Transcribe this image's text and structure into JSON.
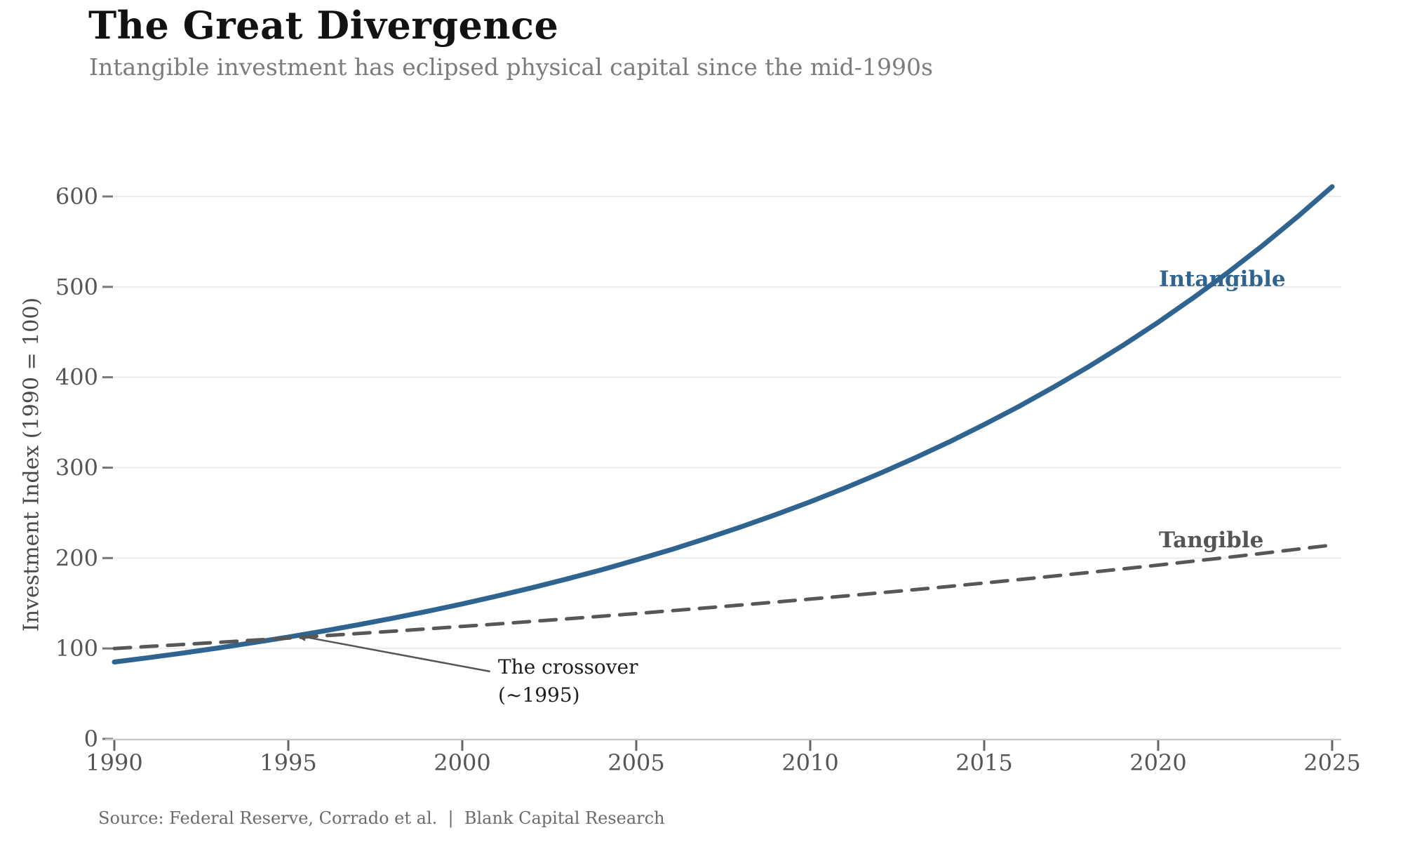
{
  "header": {
    "title": "The Great Divergence",
    "subtitle": "Intangible investment has eclipsed physical capital since the mid-1990s"
  },
  "footer": {
    "source": "Source: Federal Reserve, Corrado et al.  |  Blank Capital Research"
  },
  "colors": {
    "intangible_line": "#2f6491",
    "tangible_line": "#575757",
    "gridline": "#ededed",
    "axis_line": "#c9c9c9",
    "tick_mark": "#787878",
    "tick_text": "#555555",
    "annotation_arrow": "#555555"
  },
  "chart_data": {
    "type": "line",
    "title": "The Great Divergence",
    "subtitle": "Intangible investment has eclipsed physical capital since the mid-1990s",
    "xlabel": "",
    "ylabel": "Investment Index (1990 = 100)",
    "xlim": [
      1990,
      2025
    ],
    "ylim": [
      0,
      640
    ],
    "x_ticks": [
      1990,
      1995,
      2000,
      2005,
      2010,
      2015,
      2020,
      2025
    ],
    "y_ticks": [
      0,
      100,
      200,
      300,
      400,
      500,
      600
    ],
    "grid": "horizontal",
    "legend_position": "inline-right",
    "x": [
      1990,
      1991,
      1992,
      1993,
      1994,
      1995,
      1996,
      1997,
      1998,
      1999,
      2000,
      2001,
      2002,
      2003,
      2004,
      2005,
      2006,
      2007,
      2008,
      2009,
      2010,
      2011,
      2012,
      2013,
      2014,
      2015,
      2016,
      2017,
      2018,
      2019,
      2020,
      2021,
      2022,
      2023,
      2024,
      2025
    ],
    "series": [
      {
        "name": "Intangible",
        "style": "solid",
        "color": "#2f6491",
        "values": [
          85.0,
          89.9,
          95.1,
          100.6,
          106.5,
          112.6,
          119.2,
          126.1,
          133.4,
          141.1,
          149.3,
          158.0,
          167.1,
          176.8,
          187.0,
          197.9,
          209.3,
          221.5,
          234.3,
          247.9,
          262.3,
          277.5,
          293.6,
          310.6,
          328.6,
          347.7,
          367.8,
          389.2,
          411.7,
          435.6,
          460.8,
          487.6,
          515.8,
          545.7,
          577.4,
          610.9
        ]
      },
      {
        "name": "Tangible",
        "style": "dashed",
        "color": "#575757",
        "values": [
          100.0,
          102.2,
          104.5,
          106.8,
          109.1,
          111.5,
          114.0,
          116.5,
          119.1,
          121.7,
          124.4,
          127.1,
          129.9,
          132.7,
          135.7,
          138.6,
          141.7,
          144.8,
          148.0,
          151.3,
          154.6,
          158.0,
          161.5,
          165.0,
          168.7,
          172.4,
          176.2,
          180.1,
          184.0,
          188.1,
          192.2,
          196.5,
          200.8,
          205.2,
          209.8,
          214.4
        ]
      }
    ],
    "annotation": {
      "line1": "The crossover",
      "line2": "(~1995)",
      "arrow_tip": {
        "year": 1995.1,
        "value": 113
      },
      "arrow_tail": {
        "year": 2000.8,
        "value": 74.5
      }
    }
  }
}
